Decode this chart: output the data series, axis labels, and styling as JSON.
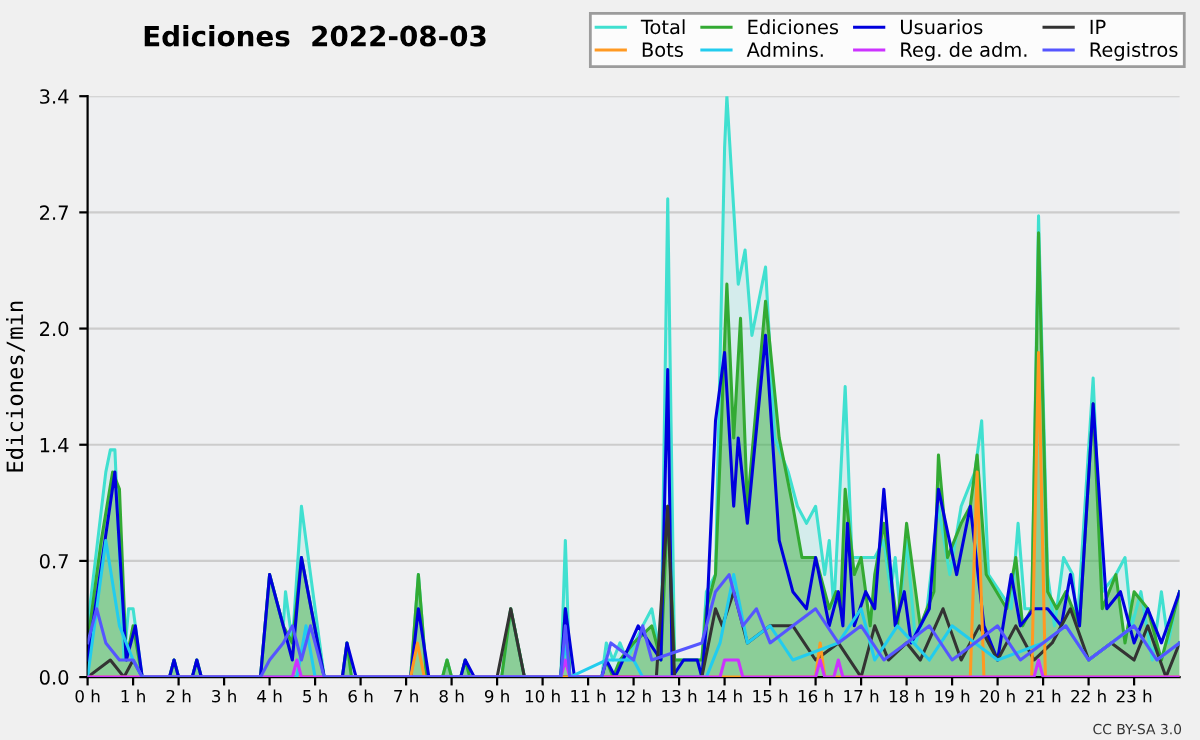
{
  "chart_data": {
    "type": "line",
    "title": "Ediciones  2022-08-03",
    "ylabel": "Ediciones/min",
    "xlim": [
      0,
      24
    ],
    "ylim": [
      0,
      3.4
    ],
    "xticks": [
      {
        "value": 0,
        "label": "0 h"
      },
      {
        "value": 1,
        "label": "1 h"
      },
      {
        "value": 2,
        "label": "2 h"
      },
      {
        "value": 3,
        "label": "3 h"
      },
      {
        "value": 4,
        "label": "4 h"
      },
      {
        "value": 5,
        "label": "5 h"
      },
      {
        "value": 6,
        "label": "6 h"
      },
      {
        "value": 7,
        "label": "7 h"
      },
      {
        "value": 8,
        "label": "8 h"
      },
      {
        "value": 9,
        "label": "9 h"
      },
      {
        "value": 10,
        "label": "10 h"
      },
      {
        "value": 11,
        "label": "11 h"
      },
      {
        "value": 12,
        "label": "12 h"
      },
      {
        "value": 13,
        "label": "13 h"
      },
      {
        "value": 14,
        "label": "14 h"
      },
      {
        "value": 15,
        "label": "15 h"
      },
      {
        "value": 16,
        "label": "16 h"
      },
      {
        "value": 17,
        "label": "17 h"
      },
      {
        "value": 18,
        "label": "18 h"
      },
      {
        "value": 19,
        "label": "19 h"
      },
      {
        "value": 20,
        "label": "20 h"
      },
      {
        "value": 21,
        "label": "21 h"
      },
      {
        "value": 22,
        "label": "22 h"
      },
      {
        "value": 23,
        "label": "23 h"
      }
    ],
    "yticks": [
      {
        "value": 0,
        "label": "0.0"
      },
      {
        "value": 0.68,
        "label": "0.7"
      },
      {
        "value": 1.36,
        "label": "1.4"
      },
      {
        "value": 2.04,
        "label": "2.0"
      },
      {
        "value": 2.72,
        "label": "2.7"
      },
      {
        "value": 3.4,
        "label": "3.4"
      }
    ],
    "grid": "y",
    "legend": "top right",
    "annotations": [
      "CC BY-SA 3.0"
    ],
    "series": [
      {
        "name": "Total",
        "type": "area",
        "color": "#40e0d0",
        "x": [
          0,
          0.4,
          0.5,
          0.6,
          0.8,
          0.9,
          1.0,
          1.2,
          1.8,
          1.9,
          2.0,
          2.3,
          2.4,
          2.5,
          3.8,
          4.0,
          4.3,
          4.35,
          4.5,
          4.7,
          5.2,
          5.6,
          5.7,
          5.8,
          7.1,
          7.27,
          7.45,
          7.8,
          7.9,
          8.0,
          8.2,
          8.3,
          8.4,
          9.1,
          9.3,
          9.6,
          10.4,
          10.5,
          10.6,
          11.3,
          11.4,
          11.55,
          11.7,
          11.85,
          12.2,
          12.4,
          12.6,
          12.75,
          12.9,
          13.5,
          13.6,
          13.8,
          14.0,
          14.05,
          14.3,
          14.45,
          14.6,
          14.9,
          15.1,
          15.4,
          15.6,
          15.8,
          16.0,
          16.2,
          16.3,
          16.4,
          16.65,
          16.8,
          17.3,
          17.5,
          17.65,
          17.75,
          17.85,
          18.0,
          18.2,
          18.45,
          18.7,
          18.95,
          19.2,
          19.5,
          19.65,
          19.8,
          20.3,
          20.45,
          20.6,
          20.75,
          20.9,
          21.1,
          21.25,
          21.45,
          21.65,
          21.75,
          22.1,
          22.3,
          22.6,
          22.8,
          22.95,
          23.15,
          23.4,
          23.6,
          23.75,
          23.9,
          24
        ],
        "values": [
          0.3,
          1.2,
          1.33,
          1.33,
          0.1,
          0.4,
          0.4,
          0,
          0,
          0.1,
          0,
          0,
          0.1,
          0,
          0,
          0.6,
          0.3,
          0.5,
          0.2,
          1.0,
          0,
          0,
          0.2,
          0,
          0,
          0.6,
          0,
          0,
          0.1,
          0,
          0,
          0.1,
          0,
          0,
          0.4,
          0,
          0,
          0.8,
          0,
          0,
          0.2,
          0.1,
          0.2,
          0.1,
          0.3,
          0.4,
          0.1,
          2.8,
          0.1,
          0.1,
          0.5,
          0.6,
          3.1,
          3.4,
          2.3,
          2.5,
          2.0,
          2.4,
          1.4,
          1.2,
          1.0,
          0.9,
          1.0,
          0.6,
          0.8,
          0.4,
          1.7,
          0.7,
          0.7,
          0.8,
          0.5,
          0.7,
          0.4,
          0.8,
          0.2,
          0.4,
          1.0,
          0.6,
          1.0,
          1.2,
          1.5,
          0.6,
          0.4,
          0.9,
          0.4,
          0.4,
          2.7,
          0.6,
          0.3,
          0.7,
          0.6,
          0.3,
          1.75,
          0.5,
          0.6,
          0.7,
          0.3,
          0.5,
          0.1,
          0.5,
          0.2,
          0.4,
          0.5
        ]
      },
      {
        "name": "Ediciones",
        "type": "area",
        "color": "#33aa33",
        "x": [
          0,
          0.3,
          0.55,
          0.7,
          0.85,
          1.0,
          1.2,
          1.8,
          1.9,
          2.0,
          2.3,
          2.4,
          2.5,
          3.8,
          4.0,
          4.3,
          4.5,
          4.7,
          5.2,
          5.6,
          5.7,
          5.8,
          7.1,
          7.27,
          7.45,
          7.8,
          7.9,
          8.0,
          8.2,
          8.3,
          8.4,
          9.1,
          9.3,
          9.6,
          10.4,
          10.5,
          10.6,
          11.3,
          11.4,
          11.55,
          11.7,
          12.0,
          12.4,
          12.6,
          12.75,
          12.9,
          13.5,
          13.6,
          13.8,
          14.05,
          14.2,
          14.35,
          14.5,
          14.9,
          15.2,
          15.5,
          15.7,
          16.0,
          16.3,
          16.45,
          16.55,
          16.65,
          16.85,
          17.0,
          17.2,
          17.3,
          17.5,
          17.8,
          18.0,
          18.3,
          18.6,
          18.7,
          18.9,
          19.2,
          19.4,
          19.55,
          19.75,
          20.2,
          20.4,
          20.55,
          20.75,
          20.9,
          21.1,
          21.3,
          21.5,
          21.8,
          22.1,
          22.3,
          22.6,
          22.8,
          23.0,
          23.3,
          23.6,
          24
        ],
        "values": [
          0.2,
          0.8,
          1.2,
          1.1,
          0.1,
          0.3,
          0,
          0,
          0.1,
          0,
          0,
          0.1,
          0,
          0,
          0.6,
          0.3,
          0.2,
          0.7,
          0,
          0,
          0.2,
          0,
          0,
          0.6,
          0,
          0,
          0.1,
          0,
          0,
          0.1,
          0,
          0,
          0.4,
          0,
          0,
          0.4,
          0,
          0,
          0.1,
          0,
          0.1,
          0.2,
          0.3,
          0.1,
          1.0,
          0.1,
          0.1,
          0.4,
          0.6,
          2.3,
          1.4,
          2.1,
          1.0,
          2.2,
          1.4,
          1.0,
          0.7,
          0.7,
          0.4,
          0.5,
          0.4,
          1.1,
          0.6,
          0.7,
          0.3,
          0.6,
          0.9,
          0.3,
          0.9,
          0.3,
          0.5,
          1.3,
          0.7,
          0.9,
          1.0,
          1.3,
          0.6,
          0.4,
          0.7,
          0.3,
          0.4,
          2.6,
          0.5,
          0.4,
          0.5,
          0.3,
          1.6,
          0.4,
          0.6,
          0.2,
          0.5,
          0.4,
          0.1,
          0.5
        ]
      },
      {
        "name": "Usuarios",
        "color": "#0000dd",
        "x": [
          0,
          0.6,
          0.85,
          1.05,
          1.2,
          1.8,
          1.9,
          2.0,
          2.3,
          2.4,
          2.5,
          3.8,
          4.0,
          4.3,
          4.5,
          4.7,
          5.2,
          5.6,
          5.7,
          5.9,
          7.1,
          7.27,
          7.5,
          8.2,
          8.3,
          8.5,
          10.4,
          10.5,
          10.7,
          11.3,
          11.4,
          11.6,
          12.1,
          12.6,
          12.75,
          12.85,
          13.1,
          13.4,
          13.5,
          13.6,
          13.8,
          14.0,
          14.2,
          14.3,
          14.5,
          14.9,
          15.2,
          15.5,
          15.8,
          16.0,
          16.3,
          16.5,
          16.6,
          16.7,
          16.85,
          17.1,
          17.3,
          17.5,
          17.75,
          17.95,
          18.1,
          18.5,
          18.7,
          19.1,
          19.4,
          19.7,
          20.0,
          20.3,
          20.5,
          20.8,
          21.1,
          21.4,
          21.6,
          21.8,
          22.1,
          22.4,
          22.7,
          23.0,
          23.3,
          23.6,
          24
        ],
        "values": [
          0.1,
          1.2,
          0.1,
          0.3,
          0,
          0,
          0.1,
          0,
          0,
          0.1,
          0,
          0,
          0.6,
          0.3,
          0.1,
          0.7,
          0,
          0,
          0.2,
          0,
          0,
          0.4,
          0,
          0,
          0.1,
          0,
          0,
          0.4,
          0,
          0,
          0.1,
          0,
          0.3,
          0.1,
          1.8,
          0,
          0.1,
          0.1,
          0,
          0.3,
          1.5,
          1.9,
          1.0,
          1.4,
          0.9,
          2.0,
          0.8,
          0.5,
          0.4,
          0.7,
          0.3,
          0.5,
          0.3,
          0.9,
          0.3,
          0.5,
          0.4,
          1.1,
          0.3,
          0.5,
          0.2,
          0.4,
          1.1,
          0.6,
          1.0,
          0.3,
          0.1,
          0.6,
          0.3,
          0.4,
          0.4,
          0.3,
          0.6,
          0.3,
          1.6,
          0.4,
          0.5,
          0.2,
          0.4,
          0.2,
          0.5
        ]
      },
      {
        "name": "IP",
        "color": "#333333",
        "x": [
          0,
          0.5,
          0.8,
          1.0,
          1.2,
          9.0,
          9.3,
          9.6,
          12.5,
          12.75,
          12.9,
          13.5,
          13.8,
          13.95,
          14.2,
          14.5,
          15.0,
          15.5,
          16.0,
          16.5,
          17.0,
          17.3,
          17.6,
          18.0,
          18.3,
          18.8,
          19.2,
          19.6,
          20.0,
          20.4,
          20.8,
          21.2,
          21.6,
          22.0,
          22.5,
          23.0,
          23.3,
          23.7,
          24
        ],
        "values": [
          0,
          0.1,
          0,
          0.1,
          0,
          0,
          0.4,
          0,
          0,
          1.0,
          0,
          0,
          0.4,
          0.3,
          0.5,
          0.2,
          0.3,
          0.3,
          0.1,
          0.2,
          0,
          0.3,
          0.1,
          0.2,
          0.1,
          0.4,
          0.1,
          0.3,
          0.1,
          0.3,
          0.1,
          0.2,
          0.4,
          0.1,
          0.2,
          0.1,
          0.3,
          0,
          0.2
        ]
      },
      {
        "name": "Bots",
        "color": "#ff9922",
        "x": [
          0,
          7.1,
          7.25,
          7.4,
          16.0,
          16.1,
          16.2,
          19.4,
          19.55,
          19.7,
          20.75,
          20.9,
          21.05,
          24
        ],
        "values": [
          0,
          0,
          0.2,
          0,
          0,
          0.2,
          0,
          0,
          1.2,
          0,
          0,
          1.9,
          0,
          0
        ]
      },
      {
        "name": "Admins.",
        "color": "#22ccee",
        "x": [
          0,
          0.4,
          0.7,
          1.0,
          1.2,
          4.6,
          4.8,
          5.0,
          10.4,
          10.5,
          10.6,
          11.4,
          11.7,
          12.0,
          12.2,
          13.6,
          13.9,
          14.2,
          14.5,
          15.0,
          15.5,
          16.5,
          17.0,
          17.3,
          17.8,
          18.5,
          19.0,
          20.0,
          21.0,
          21.5,
          22.0,
          22.5,
          23.0,
          23.5,
          24
        ],
        "values": [
          0,
          0.8,
          0.3,
          0.1,
          0,
          0,
          0.3,
          0,
          0,
          0.2,
          0,
          0.1,
          0.1,
          0.1,
          0,
          0,
          0.2,
          0.6,
          0.2,
          0.3,
          0.1,
          0.2,
          0.4,
          0.1,
          0.3,
          0.1,
          0.3,
          0.1,
          0.2,
          0.3,
          0.1,
          0.2,
          0.3,
          0.1,
          0.2
        ]
      },
      {
        "name": "Reg. de adm.",
        "color": "#cc33ff",
        "x": [
          0,
          4.5,
          4.6,
          4.7,
          10.4,
          10.5,
          10.6,
          13.9,
          14.0,
          14.3,
          14.4,
          16.0,
          16.1,
          16.2,
          16.4,
          16.5,
          16.6,
          20.8,
          20.9,
          21.0,
          24
        ],
        "values": [
          0,
          0,
          0.1,
          0,
          0,
          0.1,
          0,
          0,
          0.1,
          0.1,
          0,
          0,
          0.1,
          0,
          0,
          0.1,
          0,
          0,
          0.1,
          0,
          0
        ]
      },
      {
        "name": "Registros",
        "color": "#5555ff",
        "x": [
          0,
          0.2,
          0.4,
          0.7,
          1.0,
          1.2,
          3.8,
          4.0,
          4.3,
          4.5,
          4.7,
          4.9,
          5.2,
          10.4,
          10.5,
          10.6,
          11.3,
          11.5,
          12.0,
          12.2,
          12.4,
          13.5,
          13.8,
          14.1,
          14.4,
          14.7,
          15.0,
          15.5,
          16.0,
          16.5,
          17.0,
          17.5,
          18.0,
          18.5,
          19.0,
          19.5,
          20.0,
          20.5,
          21.0,
          21.5,
          22.0,
          22.5,
          23.0,
          23.5,
          24
        ],
        "values": [
          0.2,
          0.4,
          0.2,
          0.1,
          0.1,
          0,
          0,
          0.1,
          0.2,
          0.3,
          0.1,
          0.3,
          0,
          0,
          0.3,
          0,
          0,
          0.2,
          0.1,
          0.3,
          0.1,
          0.2,
          0.5,
          0.6,
          0.3,
          0.4,
          0.2,
          0.3,
          0.4,
          0.2,
          0.3,
          0.1,
          0.2,
          0.3,
          0.1,
          0.2,
          0.3,
          0.1,
          0.2,
          0.3,
          0.1,
          0.2,
          0.3,
          0.1,
          0.2
        ]
      }
    ]
  }
}
